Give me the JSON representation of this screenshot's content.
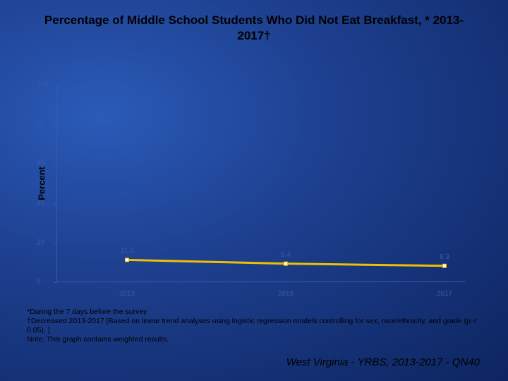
{
  "title": "Percentage of Middle School Students Who Did Not Eat Breakfast, * 2013-2017†",
  "chart": {
    "type": "line",
    "ylabel": "Percent",
    "ylim": [
      0,
      100
    ],
    "ytick_step": 20,
    "yticks": [
      0,
      20,
      40,
      60,
      80,
      100
    ],
    "x_categories": [
      "2013",
      "2015",
      "2017"
    ],
    "series": {
      "values": [
        11.3,
        9.4,
        8.3
      ],
      "line_color": "#f0c000",
      "line_width": 3,
      "marker_color": "#ffffff",
      "marker_border": "#f0c000",
      "marker_size": 5
    },
    "axis_color": "#3a5ba8",
    "tick_label_color": "#3a5ba8",
    "background": "transparent",
    "label_fontsize": 10,
    "ylabel_fontsize": 13
  },
  "footnote_lines": [
    "*During the 7 days before the survey",
    "†Decreased 2013-2017 [Based on linear trend analyses using logistic regression models controlling for sex, race/ethnicity, and grade (p < 0.05). ]",
    "Note: This graph contains weighted results."
  ],
  "source": "West Virginia - YRBS, 2013-2017 - QN40"
}
